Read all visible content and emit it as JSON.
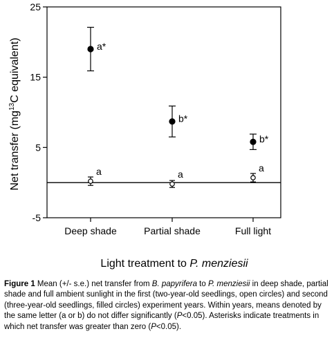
{
  "chart_data": {
    "type": "scatter",
    "categories": [
      "Deep shade",
      "Partial shade",
      "Full light"
    ],
    "ylabel_pre": "Net transfer (mg",
    "ylabel_sup": "13",
    "ylabel_post": "C equivalent)",
    "xlabel_pre": "Light treatment to ",
    "xlabel_italic": "P. menziesii",
    "ylim": [
      -5,
      25
    ],
    "yticks": [
      -5,
      5,
      15,
      25
    ],
    "ytick_labels": [
      "-5",
      "5",
      "15",
      "25"
    ],
    "reference_line": 0,
    "series": [
      {
        "marker": "open-circle",
        "values": [
          0.2,
          -0.2,
          0.7
        ],
        "errors": [
          0.6,
          0.5,
          0.6
        ],
        "labels": [
          "a",
          "a",
          "a"
        ]
      },
      {
        "marker": "filled-circle",
        "values": [
          19.0,
          8.7,
          5.8
        ],
        "errors": [
          3.1,
          2.2,
          1.1
        ],
        "labels": [
          "a*",
          "b*",
          "b*"
        ]
      }
    ]
  },
  "caption": {
    "figure_label": "Figure 1",
    "t1": " Mean (+/- s.e.) net transfer from ",
    "i1": "B. papyrifera",
    "t2": " to ",
    "i2": "P. menziesii",
    "t3": " in deep shade, partial shade and full ambient sunlight in the first (two-year-old seedlings, open circles) and second (three-year-old seedlings, filled circles) experiment years.  Within years, means denoted by the same letter (a or b) do not differ significantly (",
    "i3": "P",
    "t4": "<0.05).  Asterisks indicate treatments in which net transfer was greater than zero (",
    "i4": "P",
    "t5": "<0.05)."
  }
}
